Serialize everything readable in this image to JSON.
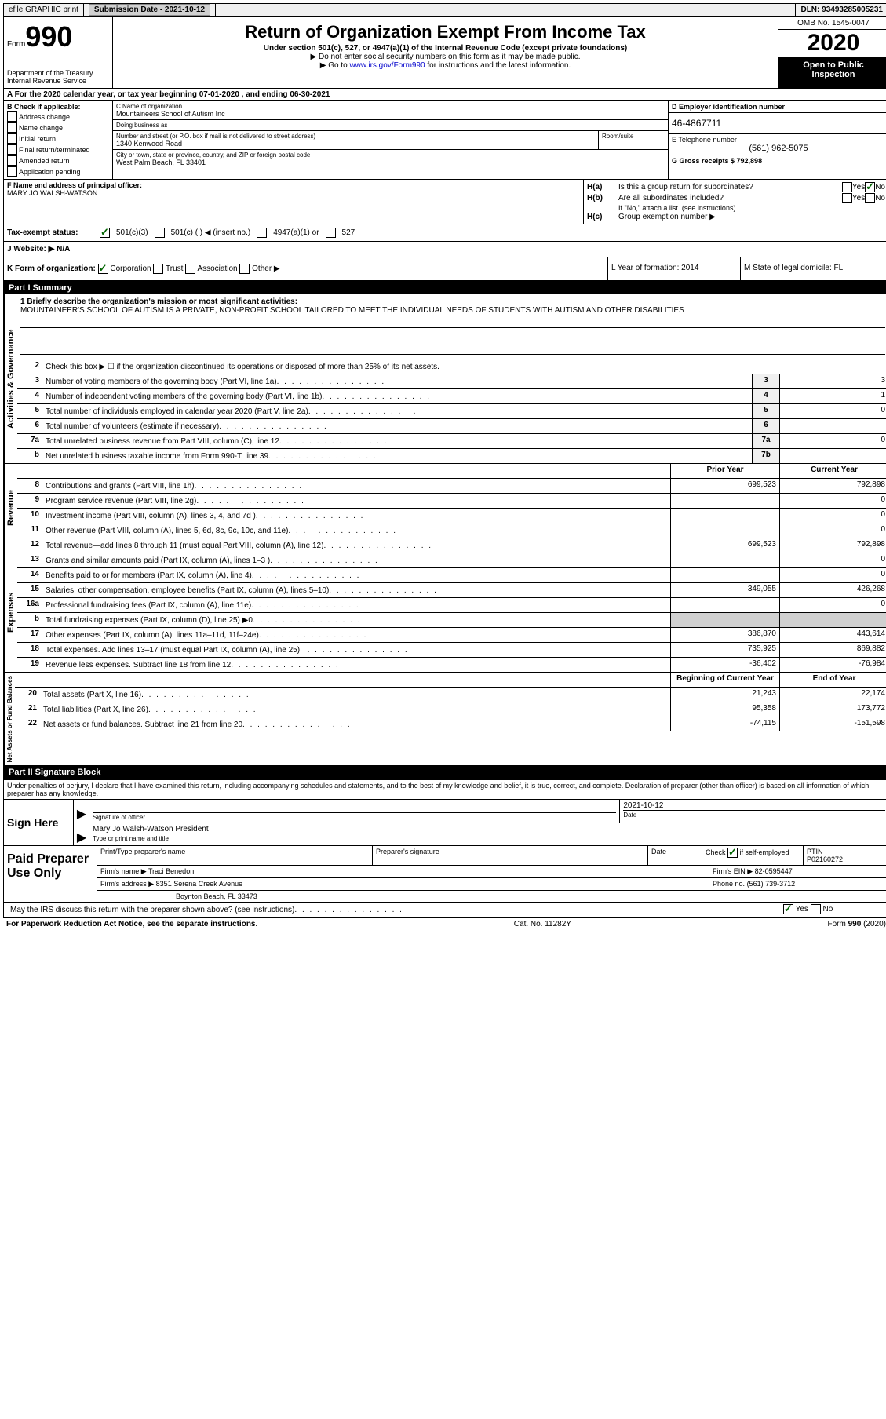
{
  "top_bar": {
    "efile": "efile GRAPHIC print",
    "submission": "Submission Date - 2021-10-12",
    "dln": "DLN: 93493285005231"
  },
  "header": {
    "form_label": "Form",
    "form_number": "990",
    "title": "Return of Organization Exempt From Income Tax",
    "subtitle": "Under section 501(c), 527, or 4947(a)(1) of the Internal Revenue Code (except private foundations)",
    "note1": "▶ Do not enter social security numbers on this form as it may be made public.",
    "note2_pre": "▶ Go to ",
    "note2_link": "www.irs.gov/Form990",
    "note2_post": " for instructions and the latest information.",
    "omb": "OMB No. 1545-0047",
    "year": "2020",
    "inspection": "Open to Public Inspection",
    "dept": "Department of the Treasury Internal Revenue Service"
  },
  "period": "A For the 2020 calendar year, or tax year beginning 07-01-2020    , and ending 06-30-2021",
  "box_b": {
    "label": "B Check if applicable:",
    "items": [
      "Address change",
      "Name change",
      "Initial return",
      "Final return/terminated",
      "Amended return",
      "Application pending"
    ]
  },
  "box_c": {
    "name_label": "C Name of organization",
    "name": "Mountaineers School of Autism Inc",
    "dba_label": "Doing business as",
    "dba": "",
    "addr_label": "Number and street (or P.O. box if mail is not delivered to street address)",
    "room_label": "Room/suite",
    "addr": "1340 Kenwood Road",
    "city_label": "City or town, state or province, country, and ZIP or foreign postal code",
    "city": "West Palm Beach, FL  33401"
  },
  "box_d": {
    "ein_label": "D Employer identification number",
    "ein": "46-4867711",
    "phone_label": "E Telephone number",
    "phone": "(561) 962-5075",
    "gross_label": "G Gross receipts $ 792,898"
  },
  "box_f": {
    "label": "F  Name and address of principal officer:",
    "name": "MARY JO WALSH-WATSON"
  },
  "box_h": {
    "ha": "Is this a group return for subordinates?",
    "hb": "Are all subordinates included?",
    "hb_note": "If \"No,\" attach a list. (see instructions)",
    "hc": "Group exemption number ▶"
  },
  "tax_status": {
    "label": "Tax-exempt status:",
    "opt1": "501(c)(3)",
    "opt2": "501(c) (  ) ◀ (insert no.)",
    "opt3": "4947(a)(1) or",
    "opt4": "527"
  },
  "website": {
    "label": "J   Website: ▶",
    "value": "N/A"
  },
  "box_k": {
    "label": "K Form of organization:",
    "corp": "Corporation",
    "trust": "Trust",
    "assoc": "Association",
    "other": "Other ▶"
  },
  "box_l": "L Year of formation: 2014",
  "box_m": "M State of legal domicile: FL",
  "part1": {
    "header": "Part I      Summary",
    "side_gov": "Activities & Governance",
    "line1_label": "1  Briefly describe the organization's mission or most significant activities:",
    "line1_text": "MOUNTAINEER'S SCHOOL OF AUTISM IS A PRIVATE, NON-PROFIT SCHOOL TAILORED TO MEET THE INDIVIDUAL NEEDS OF STUDENTS WITH AUTISM AND OTHER DISABILITIES",
    "line2": "Check this box ▶ ☐  if the organization discontinued its operations or disposed of more than 25% of its net assets.",
    "rows_gov": [
      {
        "n": "3",
        "desc": "Number of voting members of the governing body (Part VI, line 1a)",
        "box": "3",
        "val": "3"
      },
      {
        "n": "4",
        "desc": "Number of independent voting members of the governing body (Part VI, line 1b)",
        "box": "4",
        "val": "1"
      },
      {
        "n": "5",
        "desc": "Total number of individuals employed in calendar year 2020 (Part V, line 2a)",
        "box": "5",
        "val": "0"
      },
      {
        "n": "6",
        "desc": "Total number of volunteers (estimate if necessary)",
        "box": "6",
        "val": ""
      },
      {
        "n": "7a",
        "desc": "Total unrelated business revenue from Part VIII, column (C), line 12",
        "box": "7a",
        "val": "0"
      },
      {
        "n": "b",
        "desc": "Net unrelated business taxable income from Form 990-T, line 39",
        "box": "7b",
        "val": ""
      }
    ],
    "side_rev": "Revenue",
    "col_prior": "Prior Year",
    "col_current": "Current Year",
    "rows_rev": [
      {
        "n": "8",
        "desc": "Contributions and grants (Part VIII, line 1h)",
        "prior": "699,523",
        "curr": "792,898"
      },
      {
        "n": "9",
        "desc": "Program service revenue (Part VIII, line 2g)",
        "prior": "",
        "curr": "0"
      },
      {
        "n": "10",
        "desc": "Investment income (Part VIII, column (A), lines 3, 4, and 7d )",
        "prior": "",
        "curr": "0"
      },
      {
        "n": "11",
        "desc": "Other revenue (Part VIII, column (A), lines 5, 6d, 8c, 9c, 10c, and 11e)",
        "prior": "",
        "curr": "0"
      },
      {
        "n": "12",
        "desc": "Total revenue—add lines 8 through 11 (must equal Part VIII, column (A), line 12)",
        "prior": "699,523",
        "curr": "792,898"
      }
    ],
    "side_exp": "Expenses",
    "rows_exp": [
      {
        "n": "13",
        "desc": "Grants and similar amounts paid (Part IX, column (A), lines 1–3 )",
        "prior": "",
        "curr": "0"
      },
      {
        "n": "14",
        "desc": "Benefits paid to or for members (Part IX, column (A), line 4)",
        "prior": "",
        "curr": "0"
      },
      {
        "n": "15",
        "desc": "Salaries, other compensation, employee benefits (Part IX, column (A), lines 5–10)",
        "prior": "349,055",
        "curr": "426,268"
      },
      {
        "n": "16a",
        "desc": "Professional fundraising fees (Part IX, column (A), line 11e)",
        "prior": "",
        "curr": "0"
      },
      {
        "n": "b",
        "desc": "Total fundraising expenses (Part IX, column (D), line 25) ▶0",
        "prior": "shaded",
        "curr": "shaded"
      },
      {
        "n": "17",
        "desc": "Other expenses (Part IX, column (A), lines 11a–11d, 11f–24e)",
        "prior": "386,870",
        "curr": "443,614"
      },
      {
        "n": "18",
        "desc": "Total expenses. Add lines 13–17 (must equal Part IX, column (A), line 25)",
        "prior": "735,925",
        "curr": "869,882"
      },
      {
        "n": "19",
        "desc": "Revenue less expenses. Subtract line 18 from line 12",
        "prior": "-36,402",
        "curr": "-76,984"
      }
    ],
    "side_net": "Net Assets or Fund Balances",
    "col_begin": "Beginning of Current Year",
    "col_end": "End of Year",
    "rows_net": [
      {
        "n": "20",
        "desc": "Total assets (Part X, line 16)",
        "prior": "21,243",
        "curr": "22,174"
      },
      {
        "n": "21",
        "desc": "Total liabilities (Part X, line 26)",
        "prior": "95,358",
        "curr": "173,772"
      },
      {
        "n": "22",
        "desc": "Net assets or fund balances. Subtract line 21 from line 20",
        "prior": "-74,115",
        "curr": "-151,598"
      }
    ]
  },
  "part2": {
    "header": "Part II     Signature Block",
    "declare": "Under penalties of perjury, I declare that I have examined this return, including accompanying schedules and statements, and to the best of my knowledge and belief, it is true, correct, and complete. Declaration of preparer (other than officer) is based on all information of which preparer has any knowledge.",
    "sign_here": "Sign Here",
    "sig_officer": "Signature of officer",
    "sig_date": "2021-10-12",
    "date_label": "Date",
    "sig_name": "Mary Jo Walsh-Watson  President",
    "sig_name_label": "Type or print name and title",
    "paid_prep": "Paid Preparer Use Only",
    "prep_name_label": "Print/Type preparer's name",
    "prep_sig_label": "Preparer's signature",
    "prep_date_label": "Date",
    "prep_check": "Check ☑ if self-employed",
    "ptin_label": "PTIN",
    "ptin": "P02160272",
    "firm_name_label": "Firm's name    ▶",
    "firm_name": "Traci Benedon",
    "firm_ein_label": "Firm's EIN ▶",
    "firm_ein": "82-0595447",
    "firm_addr_label": "Firm's address ▶",
    "firm_addr1": "8351 Serena Creek Avenue",
    "firm_addr2": "Boynton Beach, FL  33473",
    "firm_phone_label": "Phone no.",
    "firm_phone": "(561) 739-3712",
    "discuss": "May the IRS discuss this return with the preparer shown above? (see instructions)"
  },
  "footer": {
    "paperwork": "For Paperwork Reduction Act Notice, see the separate instructions.",
    "cat": "Cat. No. 11282Y",
    "form": "Form 990 (2020)"
  }
}
